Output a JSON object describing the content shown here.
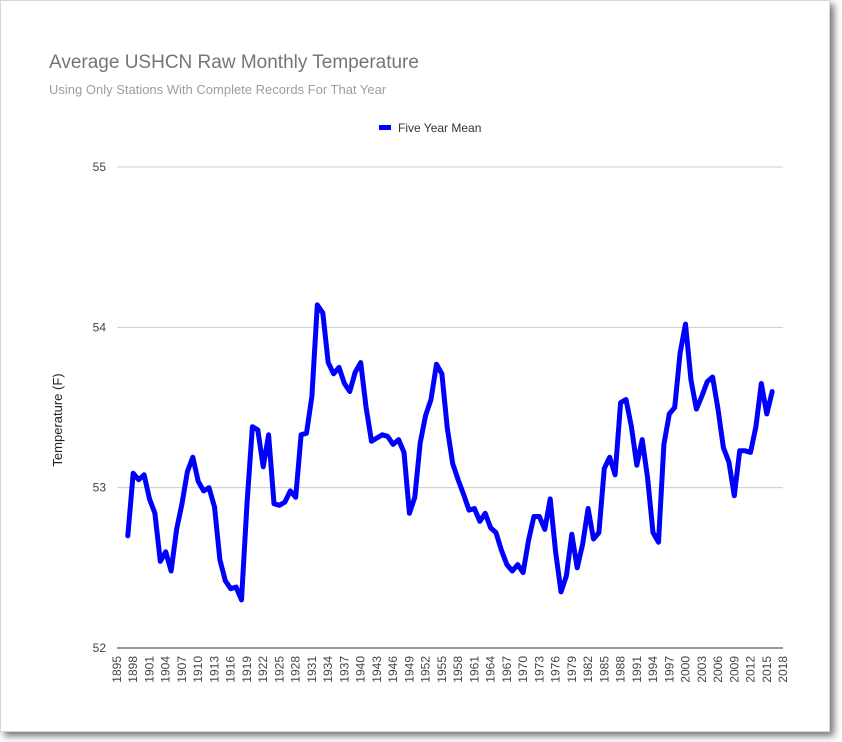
{
  "chart_data": {
    "type": "line",
    "title": "Average USHCN Raw Monthly Temperature",
    "subtitle": "Using Only Stations With Complete Records For That Year",
    "xlabel": "",
    "ylabel": "Temperature (F)",
    "ylim": [
      52,
      55
    ],
    "xlim": [
      1895,
      2018
    ],
    "y_ticks": [
      "52",
      "53",
      "54",
      "55"
    ],
    "x_ticks": [
      "1895",
      "1898",
      "1901",
      "1904",
      "1907",
      "1910",
      "1913",
      "1916",
      "1919",
      "1922",
      "1925",
      "1928",
      "1931",
      "1934",
      "1937",
      "1940",
      "1943",
      "1946",
      "1949",
      "1952",
      "1955",
      "1958",
      "1961",
      "1964",
      "1967",
      "1970",
      "1973",
      "1976",
      "1979",
      "1982",
      "1985",
      "1988",
      "1991",
      "1994",
      "1997",
      "2000",
      "2003",
      "2006",
      "2009",
      "2012",
      "2015",
      "2018"
    ],
    "grid": true,
    "legend_position": "top",
    "color": "#0000ff",
    "series": [
      {
        "name": "Five Year Mean",
        "x": [
          1897,
          1898,
          1899,
          1900,
          1901,
          1902,
          1903,
          1904,
          1905,
          1906,
          1907,
          1908,
          1909,
          1910,
          1911,
          1912,
          1913,
          1914,
          1915,
          1916,
          1917,
          1918,
          1919,
          1920,
          1921,
          1922,
          1923,
          1924,
          1925,
          1926,
          1927,
          1928,
          1929,
          1930,
          1931,
          1932,
          1933,
          1934,
          1935,
          1936,
          1937,
          1938,
          1939,
          1940,
          1941,
          1942,
          1943,
          1944,
          1945,
          1946,
          1947,
          1948,
          1949,
          1950,
          1951,
          1952,
          1953,
          1954,
          1955,
          1956,
          1957,
          1958,
          1959,
          1960,
          1961,
          1962,
          1963,
          1964,
          1965,
          1966,
          1967,
          1968,
          1969,
          1970,
          1971,
          1972,
          1973,
          1974,
          1975,
          1976,
          1977,
          1978,
          1979,
          1980,
          1981,
          1982,
          1983,
          1984,
          1985,
          1986,
          1987,
          1988,
          1989,
          1990,
          1991,
          1992,
          1993,
          1994,
          1995,
          1996,
          1997,
          1998,
          1999,
          2000,
          2001,
          2002,
          2003,
          2004,
          2005,
          2006,
          2007,
          2008,
          2009,
          2010,
          2011,
          2012,
          2013,
          2014,
          2015,
          2016
        ],
        "values": [
          52.7,
          53.09,
          53.05,
          53.08,
          52.93,
          52.84,
          52.54,
          52.6,
          52.48,
          52.74,
          52.9,
          53.1,
          53.19,
          53.04,
          52.98,
          53.0,
          52.88,
          52.55,
          52.42,
          52.37,
          52.38,
          52.3,
          52.9,
          53.38,
          53.36,
          53.13,
          53.33,
          52.9,
          52.89,
          52.91,
          52.98,
          52.94,
          53.33,
          53.34,
          53.57,
          54.14,
          54.09,
          53.78,
          53.71,
          53.75,
          53.65,
          53.6,
          53.72,
          53.78,
          53.5,
          53.29,
          53.31,
          53.33,
          53.32,
          53.27,
          53.3,
          53.22,
          52.84,
          52.94,
          53.28,
          53.45,
          53.55,
          53.77,
          53.71,
          53.37,
          53.15,
          53.05,
          52.96,
          52.86,
          52.87,
          52.79,
          52.84,
          52.75,
          52.72,
          52.61,
          52.52,
          52.48,
          52.52,
          52.47,
          52.67,
          52.82,
          52.82,
          52.74,
          52.93,
          52.6,
          52.35,
          52.45,
          52.71,
          52.5,
          52.65,
          52.87,
          52.68,
          52.72,
          53.12,
          53.19,
          53.08,
          53.53,
          53.55,
          53.38,
          53.14,
          53.3,
          53.06,
          52.72,
          52.66,
          53.27,
          53.46,
          53.5,
          53.84,
          54.02,
          53.67,
          53.49,
          53.57,
          53.66,
          53.69,
          53.49,
          53.25,
          53.16,
          52.95,
          53.23,
          53.23,
          53.22,
          53.38,
          53.65,
          53.46,
          53.6
        ]
      }
    ]
  }
}
